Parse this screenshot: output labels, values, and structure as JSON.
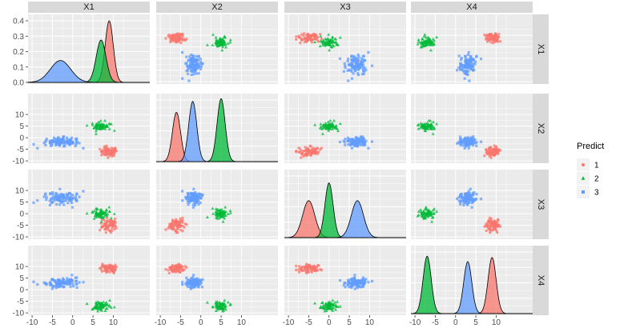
{
  "chart_data": {
    "type": "scatter",
    "variables": [
      "X1",
      "X2",
      "X3",
      "X4"
    ],
    "legend": {
      "title": "Predict",
      "placement": "right",
      "entries": [
        {
          "label": "1",
          "color": "#F8766D",
          "shape": "circle"
        },
        {
          "label": "2",
          "color": "#00BA38",
          "shape": "triangle"
        },
        {
          "label": "3",
          "color": "#619CFF",
          "shape": "square"
        }
      ]
    },
    "clusters": [
      {
        "name": "1",
        "center": [
          9,
          -6,
          -5,
          9
        ],
        "sd": [
          1.0,
          1.0,
          1.5,
          1.0
        ],
        "n": 70
      },
      {
        "name": "2",
        "center": [
          7,
          5,
          0,
          -7
        ],
        "sd": [
          1.2,
          1.0,
          1.0,
          1.0
        ],
        "n": 70
      },
      {
        "name": "3",
        "center": [
          -3,
          -2,
          7,
          3
        ],
        "sd": [
          2.5,
          1.0,
          1.5,
          1.0
        ],
        "n": 100
      }
    ],
    "density_peaks": {
      "X1": [
        0.45,
        0.31,
        0.16
      ],
      "X2": [
        0.36,
        0.46,
        0.44
      ],
      "X3": [
        0.27,
        0.4,
        0.27
      ],
      "X4": [
        0.41,
        0.42,
        0.38
      ]
    },
    "x_ticks": [
      -10,
      -5,
      0,
      5,
      10
    ],
    "y_ticks": [
      -10,
      -5,
      0,
      5,
      10
    ],
    "diag_y_ticks": [
      "0.0",
      "0.1",
      "0.2",
      "0.3",
      "0.4"
    ],
    "grid": true
  }
}
